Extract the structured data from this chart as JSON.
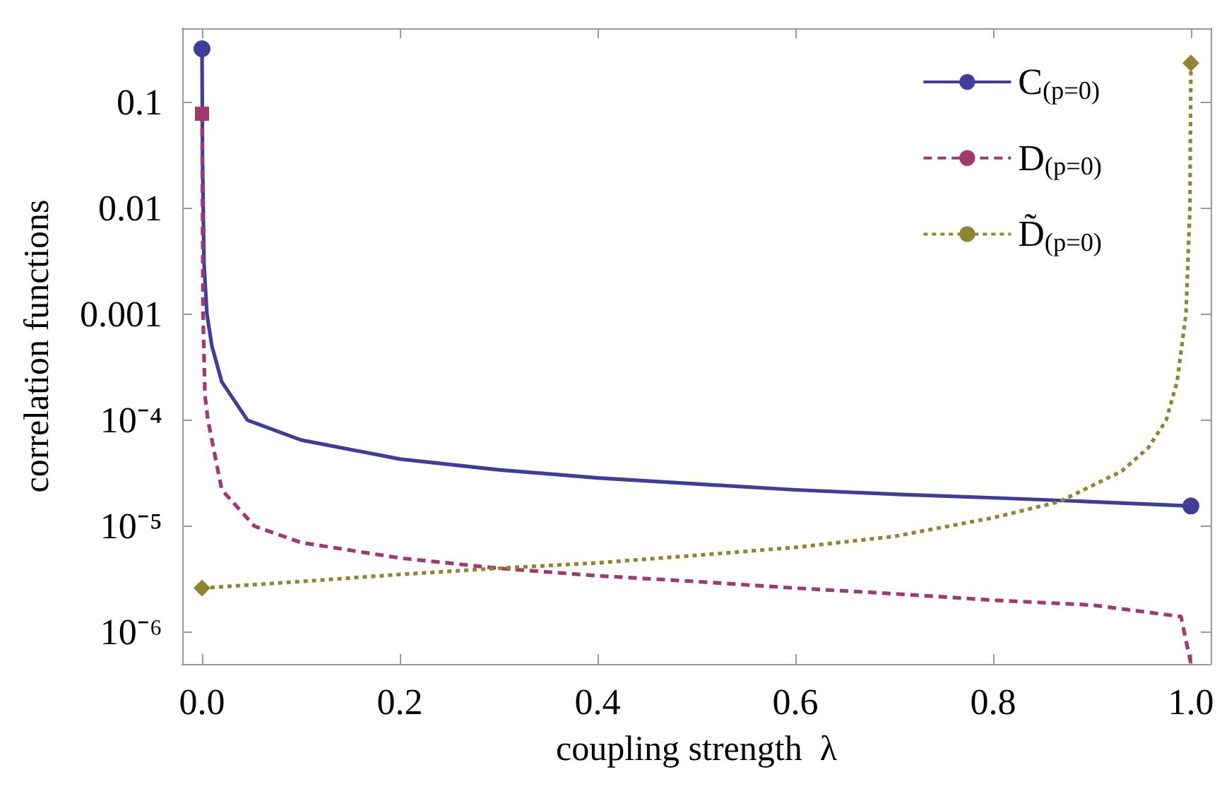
{
  "chart_data": {
    "type": "line",
    "xlabel": "coupling strength  λ",
    "ylabel": "correlation functions",
    "log": "y",
    "xlim": [
      -0.02,
      1.02
    ],
    "ylim": [
      5e-07,
      0.5
    ],
    "xticks": [
      {
        "value": 0,
        "label": "0.0"
      },
      0.2,
      0.4,
      0.6,
      0.8,
      {
        "value": 1,
        "label": "1.0"
      }
    ],
    "yticks": [
      {
        "value": 1e-06,
        "label": "10⁻⁶"
      },
      {
        "value": 1e-05,
        "label": "10⁻⁵"
      },
      {
        "value": 0.0001,
        "label": "10⁻⁴"
      },
      0.001,
      0.01,
      0.1
    ],
    "grid": false,
    "legend": "top right",
    "series": [
      {
        "name": "C$_{(p=0)}$",
        "color": "#3f3d99",
        "line_style": "solid",
        "x": [
          0,
          0.0005,
          0.002,
          0.005,
          0.01,
          0.02,
          0.046,
          0.1,
          0.2,
          0.3,
          0.4,
          0.5,
          0.6,
          0.7,
          0.8,
          0.9,
          1.0
        ],
        "values": [
          0.32,
          0.03,
          0.003,
          0.001,
          0.0005,
          0.00023,
          0.0001,
          6.5e-05,
          4.3e-05,
          3.4e-05,
          2.85e-05,
          2.5e-05,
          2.2e-05,
          2e-05,
          1.85e-05,
          1.7e-05,
          1.55e-05
        ]
      },
      {
        "name": "D$_{(p=0)}$",
        "color": "#9e3a6e",
        "line_style": "dashed",
        "x": [
          0,
          0.0005,
          0.001,
          0.003,
          0.006,
          0.02,
          0.053,
          0.1,
          0.2,
          0.3,
          0.4,
          0.5,
          0.6,
          0.7,
          0.8,
          0.9,
          0.99,
          1.0
        ],
        "values": [
          0.078,
          0.01,
          0.001,
          0.00017,
          0.0001,
          2.2e-05,
          1e-05,
          7e-06,
          5e-06,
          4e-06,
          3.4e-06,
          3e-06,
          2.6e-06,
          2.3e-06,
          2e-06,
          1.8e-06,
          1.4e-06,
          5e-07
        ]
      },
      {
        "name": "D̃$_{(p=0)}$",
        "color": "#8f8430",
        "line_style": "dotted",
        "x": [
          0,
          0.1,
          0.2,
          0.3,
          0.4,
          0.5,
          0.6,
          0.7,
          0.8,
          0.867,
          0.93,
          0.957,
          0.975,
          0.986,
          0.995,
          0.999,
          1.0
        ],
        "values": [
          2.6e-06,
          3e-06,
          3.5e-06,
          4e-06,
          4.5e-06,
          5.3e-06,
          6.3e-06,
          8e-06,
          1.2e-05,
          1.7e-05,
          3.3e-05,
          5.5e-05,
          0.0001,
          0.00023,
          0.001,
          0.01,
          0.235
        ]
      },
      {
        "type": "scatter",
        "color": "#3f3d99",
        "marker": "circle",
        "x": [
          0,
          1.0
        ],
        "values": [
          0.32,
          1.55e-05
        ]
      },
      {
        "type": "scatter",
        "color": "#9e3a6e",
        "marker": "square",
        "x": [
          0
        ],
        "values": [
          0.078
        ]
      },
      {
        "type": "scatter",
        "color": "#8f8430",
        "marker": "diamond",
        "x": [
          0,
          1.0
        ],
        "values": [
          2.6e-06,
          0.235
        ]
      }
    ]
  }
}
